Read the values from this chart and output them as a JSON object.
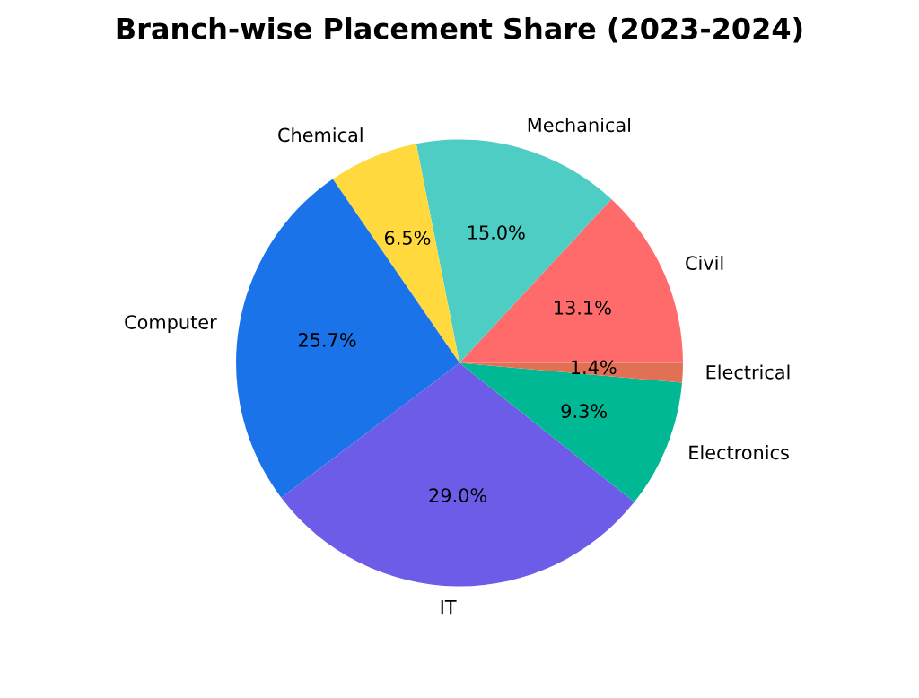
{
  "chart_data": {
    "type": "pie",
    "title": "Branch-wise Placement Share (2023-2024)",
    "categories": [
      "Civil",
      "Mechanical",
      "Chemical",
      "Computer",
      "IT",
      "Electronics",
      "Electrical"
    ],
    "values": [
      13.1,
      15.0,
      6.5,
      25.7,
      29.0,
      9.3,
      1.4
    ],
    "value_labels": [
      "13.1%",
      "15.0%",
      "6.5%",
      "25.7%",
      "29.0%",
      "9.3%",
      "1.4%"
    ],
    "colors": [
      "#ff6b6b",
      "#4ecdc4",
      "#ffd93d",
      "#1a73e8",
      "#6c5ce7",
      "#00b894",
      "#e17055"
    ]
  }
}
